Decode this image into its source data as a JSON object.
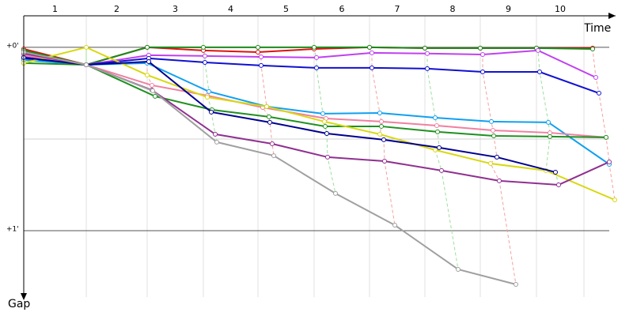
{
  "chart_data": {
    "type": "line",
    "x_label": "Time",
    "y_label": "Gap",
    "categories": [
      "1",
      "2",
      "3",
      "4",
      "5",
      "6",
      "7",
      "8",
      "9",
      "10"
    ],
    "xlim": [
      0,
      740
    ],
    "xticks": [
      79,
      156,
      227,
      296,
      367,
      437,
      507,
      577,
      648,
      708
    ],
    "ylim": [
      -0.172,
      1.362
    ],
    "yticks": [
      {
        "value": 0,
        "label": "+0'"
      },
      {
        "value": 1,
        "label": "+1'"
      }
    ],
    "ygrid_minor": [
      0.5
    ],
    "series": [
      {
        "color": "#e01010",
        "x": [
          0,
          79,
          156,
          227,
          296,
          367,
          437,
          507,
          577,
          648,
          719
        ],
        "values": [
          0.009,
          0.095,
          0,
          0.017,
          0.026,
          0.009,
          0,
          0.004,
          0.004,
          0.004,
          0.004
        ]
      },
      {
        "color": "#1a8a1a",
        "x": [
          0,
          79,
          156,
          227,
          296,
          367,
          437,
          507,
          577,
          648,
          719
        ],
        "values": [
          0.017,
          0.095,
          0,
          0,
          0,
          0,
          0,
          0.004,
          0.004,
          0.004,
          0.009
        ]
      },
      {
        "color": "#c040f0",
        "x": [
          0,
          79,
          158,
          229,
          300,
          370,
          440,
          510,
          580,
          650,
          723
        ],
        "values": [
          0.052,
          0.095,
          0.043,
          0.047,
          0.052,
          0.056,
          0.03,
          0.034,
          0.039,
          0.017,
          0.164
        ]
      },
      {
        "color": "#1010d0",
        "x": [
          0,
          79,
          158,
          229,
          300,
          370,
          440,
          510,
          580,
          652,
          727
        ],
        "values": [
          0.06,
          0.095,
          0.06,
          0.082,
          0.099,
          0.112,
          0.112,
          0.116,
          0.134,
          0.134,
          0.25
        ]
      },
      {
        "color": "#10a0f0",
        "x": [
          0,
          79,
          156,
          234,
          307,
          378,
          450,
          520,
          591,
          663,
          740
        ],
        "values": [
          0.069,
          0.095,
          0.086,
          0.241,
          0.323,
          0.362,
          0.358,
          0.384,
          0.405,
          0.409,
          0.638
        ]
      },
      {
        "color": "#f080a0",
        "x": [
          0,
          79,
          162,
          232,
          302,
          382,
          452,
          522,
          593,
          665,
          736
        ],
        "values": [
          0.043,
          0.095,
          0.207,
          0.263,
          0.328,
          0.388,
          0.405,
          0.427,
          0.453,
          0.466,
          0.491
        ]
      },
      {
        "color": "#209020",
        "x": [
          0,
          79,
          166,
          238,
          310,
          381,
          452,
          523,
          594,
          665,
          736
        ],
        "values": [
          0.086,
          0.095,
          0.267,
          0.341,
          0.379,
          0.431,
          0.431,
          0.461,
          0.483,
          0.487,
          0.491
        ]
      },
      {
        "color": "#d8d810",
        "x": [
          0,
          79,
          156,
          232,
          307,
          380,
          450,
          520,
          590,
          660,
          747
        ],
        "values": [
          0.086,
          0,
          0.151,
          0.272,
          0.323,
          0.405,
          0.474,
          0.56,
          0.634,
          0.672,
          0.832
        ]
      },
      {
        "color": "#000090",
        "x": [
          0,
          79,
          158,
          237,
          311,
          383,
          455,
          525,
          598,
          672
        ],
        "values": [
          0.056,
          0.095,
          0.078,
          0.353,
          0.409,
          0.47,
          0.504,
          0.547,
          0.599,
          0.681
        ]
      },
      {
        "color": "#903090",
        "x": [
          0,
          79,
          162,
          242,
          314,
          384,
          456,
          528,
          601,
          676,
          740
        ],
        "values": [
          0.034,
          0.095,
          0.233,
          0.474,
          0.526,
          0.599,
          0.621,
          0.672,
          0.728,
          0.75,
          0.625
        ]
      },
      {
        "color": "#a0a0a0",
        "x": [
          0,
          79,
          163,
          244,
          316,
          394,
          469,
          549,
          622
        ],
        "values": [
          0.026,
          0.095,
          0.237,
          0.517,
          0.591,
          0.797,
          0.97,
          1.211,
          1.293
        ]
      }
    ]
  }
}
